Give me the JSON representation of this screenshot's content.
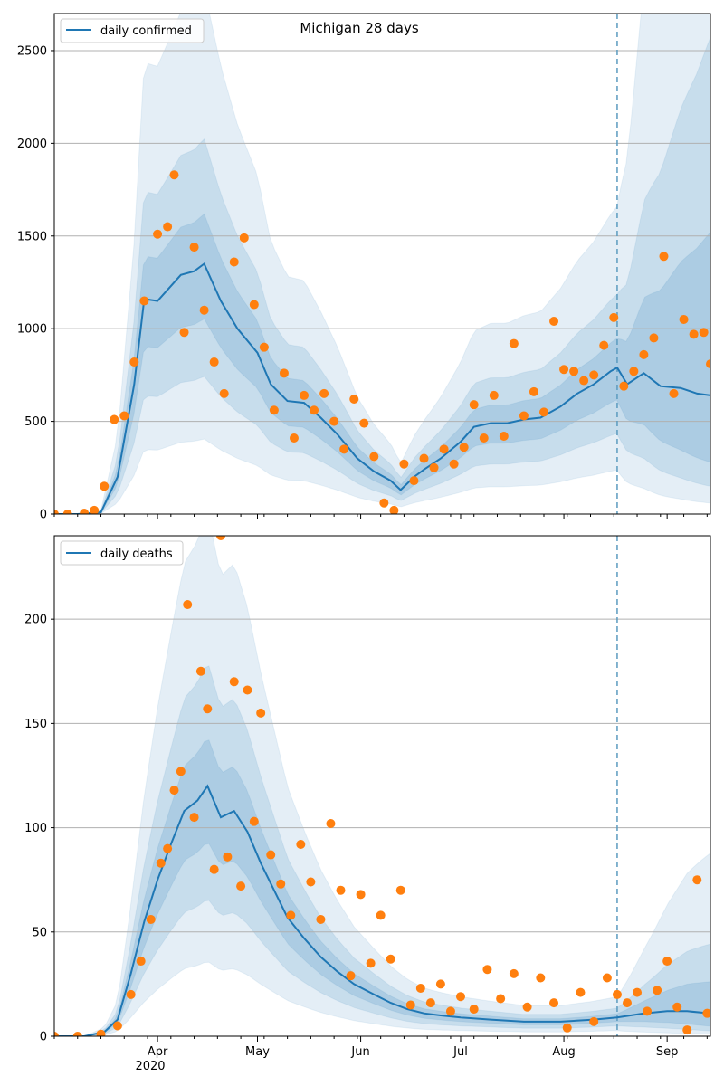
{
  "chart_data": [
    {
      "type": "line",
      "title": "Michigan 28 days",
      "xlabel": "",
      "ylabel": "",
      "xlim": [
        "2020-03-01",
        "2020-09-14"
      ],
      "ylim": [
        0,
        2700
      ],
      "yticks": [
        0,
        500,
        1000,
        1500,
        2000,
        2500
      ],
      "grid": "horizontal",
      "legend_position": "top-left",
      "forecast_start": "2020-08-17",
      "series": [
        {
          "name": "daily confirmed",
          "x": [
            "2020-03-01",
            "2020-03-08",
            "2020-03-15",
            "2020-03-20",
            "2020-03-25",
            "2020-03-28",
            "2020-04-01",
            "2020-04-08",
            "2020-04-12",
            "2020-04-15",
            "2020-04-20",
            "2020-04-25",
            "2020-05-01",
            "2020-05-05",
            "2020-05-10",
            "2020-05-15",
            "2020-05-20",
            "2020-05-25",
            "2020-05-31",
            "2020-06-05",
            "2020-06-10",
            "2020-06-13",
            "2020-06-17",
            "2020-06-20",
            "2020-06-25",
            "2020-07-01",
            "2020-07-05",
            "2020-07-10",
            "2020-07-15",
            "2020-07-20",
            "2020-07-25",
            "2020-07-31",
            "2020-08-05",
            "2020-08-10",
            "2020-08-15",
            "2020-08-17",
            "2020-08-20",
            "2020-08-25",
            "2020-08-30",
            "2020-09-05",
            "2020-09-10",
            "2020-09-14"
          ],
          "values": [
            0,
            0,
            10,
            200,
            700,
            1160,
            1150,
            1290,
            1310,
            1350,
            1150,
            1000,
            870,
            700,
            610,
            600,
            520,
            430,
            300,
            230,
            180,
            130,
            200,
            240,
            300,
            390,
            470,
            490,
            490,
            510,
            520,
            580,
            650,
            700,
            770,
            790,
            700,
            760,
            690,
            680,
            650,
            640
          ]
        },
        {
          "name": "",
          "type": "scatter",
          "x": [
            "2020-03-01",
            "2020-03-05",
            "2020-03-10",
            "2020-03-13",
            "2020-03-16",
            "2020-03-19",
            "2020-03-22",
            "2020-03-25",
            "2020-03-28",
            "2020-04-01",
            "2020-04-04",
            "2020-04-06",
            "2020-04-09",
            "2020-04-12",
            "2020-04-15",
            "2020-04-18",
            "2020-04-21",
            "2020-04-24",
            "2020-04-27",
            "2020-04-30",
            "2020-05-03",
            "2020-05-06",
            "2020-05-09",
            "2020-05-12",
            "2020-05-15",
            "2020-05-18",
            "2020-05-21",
            "2020-05-24",
            "2020-05-27",
            "2020-05-30",
            "2020-06-02",
            "2020-06-05",
            "2020-06-08",
            "2020-06-11",
            "2020-06-14",
            "2020-06-17",
            "2020-06-20",
            "2020-06-23",
            "2020-06-26",
            "2020-06-29",
            "2020-07-02",
            "2020-07-05",
            "2020-07-08",
            "2020-07-11",
            "2020-07-14",
            "2020-07-17",
            "2020-07-20",
            "2020-07-23",
            "2020-07-26",
            "2020-07-29",
            "2020-08-01",
            "2020-08-04",
            "2020-08-07",
            "2020-08-10",
            "2020-08-13",
            "2020-08-16",
            "2020-08-19",
            "2020-08-22",
            "2020-08-25",
            "2020-08-28",
            "2020-08-31",
            "2020-09-03",
            "2020-09-06",
            "2020-09-09",
            "2020-09-12",
            "2020-09-14"
          ],
          "values": [
            0,
            0,
            5,
            20,
            150,
            510,
            530,
            820,
            1150,
            1510,
            1550,
            1830,
            980,
            1440,
            1100,
            820,
            650,
            1360,
            1490,
            1130,
            900,
            560,
            760,
            410,
            640,
            560,
            650,
            500,
            350,
            620,
            490,
            310,
            60,
            20,
            270,
            180,
            300,
            250,
            350,
            270,
            360,
            590,
            410,
            640,
            420,
            920,
            530,
            660,
            550,
            1040,
            780,
            770,
            720,
            750,
            910,
            1060,
            690,
            770,
            860,
            950,
            1390,
            650,
            1050,
            970,
            980,
            810
          ],
          "point_type": "observed"
        }
      ]
    },
    {
      "type": "line",
      "title": "",
      "xlabel": "",
      "ylabel": "",
      "xlim": [
        "2020-03-01",
        "2020-09-14"
      ],
      "ylim": [
        0,
        240
      ],
      "yticks": [
        0,
        50,
        100,
        150,
        200
      ],
      "xticks": [
        "Apr",
        "May",
        "Jun",
        "Jul",
        "Aug",
        "Sep"
      ],
      "xtick_year": "2020",
      "grid": "horizontal",
      "legend_position": "top-left",
      "forecast_start": "2020-08-17",
      "series": [
        {
          "name": "daily deaths",
          "x": [
            "2020-03-01",
            "2020-03-10",
            "2020-03-16",
            "2020-03-20",
            "2020-03-24",
            "2020-03-28",
            "2020-04-01",
            "2020-04-05",
            "2020-04-09",
            "2020-04-13",
            "2020-04-16",
            "2020-04-20",
            "2020-04-24",
            "2020-04-28",
            "2020-05-02",
            "2020-05-06",
            "2020-05-10",
            "2020-05-15",
            "2020-05-20",
            "2020-05-25",
            "2020-05-30",
            "2020-06-05",
            "2020-06-10",
            "2020-06-15",
            "2020-06-20",
            "2020-06-25",
            "2020-07-01",
            "2020-07-10",
            "2020-07-20",
            "2020-07-31",
            "2020-08-10",
            "2020-08-17",
            "2020-08-25",
            "2020-09-01",
            "2020-09-07",
            "2020-09-14"
          ],
          "values": [
            0,
            0,
            2,
            8,
            30,
            55,
            75,
            92,
            108,
            113,
            120,
            105,
            108,
            98,
            83,
            70,
            57,
            47,
            38,
            31,
            25,
            20,
            16,
            13,
            11,
            10,
            9,
            8,
            7,
            7,
            8,
            9,
            11,
            12,
            12,
            11
          ]
        },
        {
          "name": "",
          "type": "scatter",
          "x": [
            "2020-03-01",
            "2020-03-08",
            "2020-03-15",
            "2020-03-20",
            "2020-03-24",
            "2020-03-27",
            "2020-03-30",
            "2020-04-02",
            "2020-04-04",
            "2020-04-06",
            "2020-04-08",
            "2020-04-10",
            "2020-04-12",
            "2020-04-14",
            "2020-04-16",
            "2020-04-18",
            "2020-04-20",
            "2020-04-22",
            "2020-04-24",
            "2020-04-26",
            "2020-04-28",
            "2020-04-30",
            "2020-05-02",
            "2020-05-05",
            "2020-05-08",
            "2020-05-11",
            "2020-05-14",
            "2020-05-17",
            "2020-05-20",
            "2020-05-23",
            "2020-05-26",
            "2020-05-29",
            "2020-06-01",
            "2020-06-04",
            "2020-06-07",
            "2020-06-10",
            "2020-06-13",
            "2020-06-16",
            "2020-06-19",
            "2020-06-22",
            "2020-06-25",
            "2020-06-28",
            "2020-07-01",
            "2020-07-05",
            "2020-07-09",
            "2020-07-13",
            "2020-07-17",
            "2020-07-21",
            "2020-07-25",
            "2020-07-29",
            "2020-08-02",
            "2020-08-06",
            "2020-08-10",
            "2020-08-14",
            "2020-08-17",
            "2020-08-20",
            "2020-08-23",
            "2020-08-26",
            "2020-08-29",
            "2020-09-01",
            "2020-09-04",
            "2020-09-07",
            "2020-09-10",
            "2020-09-13"
          ],
          "values": [
            0,
            0,
            1,
            5,
            20,
            36,
            56,
            83,
            90,
            118,
            127,
            207,
            105,
            175,
            157,
            80,
            240,
            86,
            170,
            72,
            166,
            103,
            155,
            87,
            73,
            58,
            92,
            74,
            56,
            102,
            70,
            29,
            68,
            35,
            58,
            37,
            70,
            15,
            23,
            16,
            25,
            12,
            19,
            13,
            32,
            18,
            30,
            14,
            28,
            16,
            4,
            21,
            7,
            28,
            20,
            16,
            21,
            12,
            22,
            36,
            14,
            3,
            75,
            11
          ],
          "point_type": "observed"
        }
      ]
    }
  ],
  "colors": {
    "line": "#1f77b4",
    "points": "#ff7f0e",
    "band": "#1f77b4",
    "forecast_line": "#5b9bbf",
    "grid": "#b0b0b0"
  }
}
